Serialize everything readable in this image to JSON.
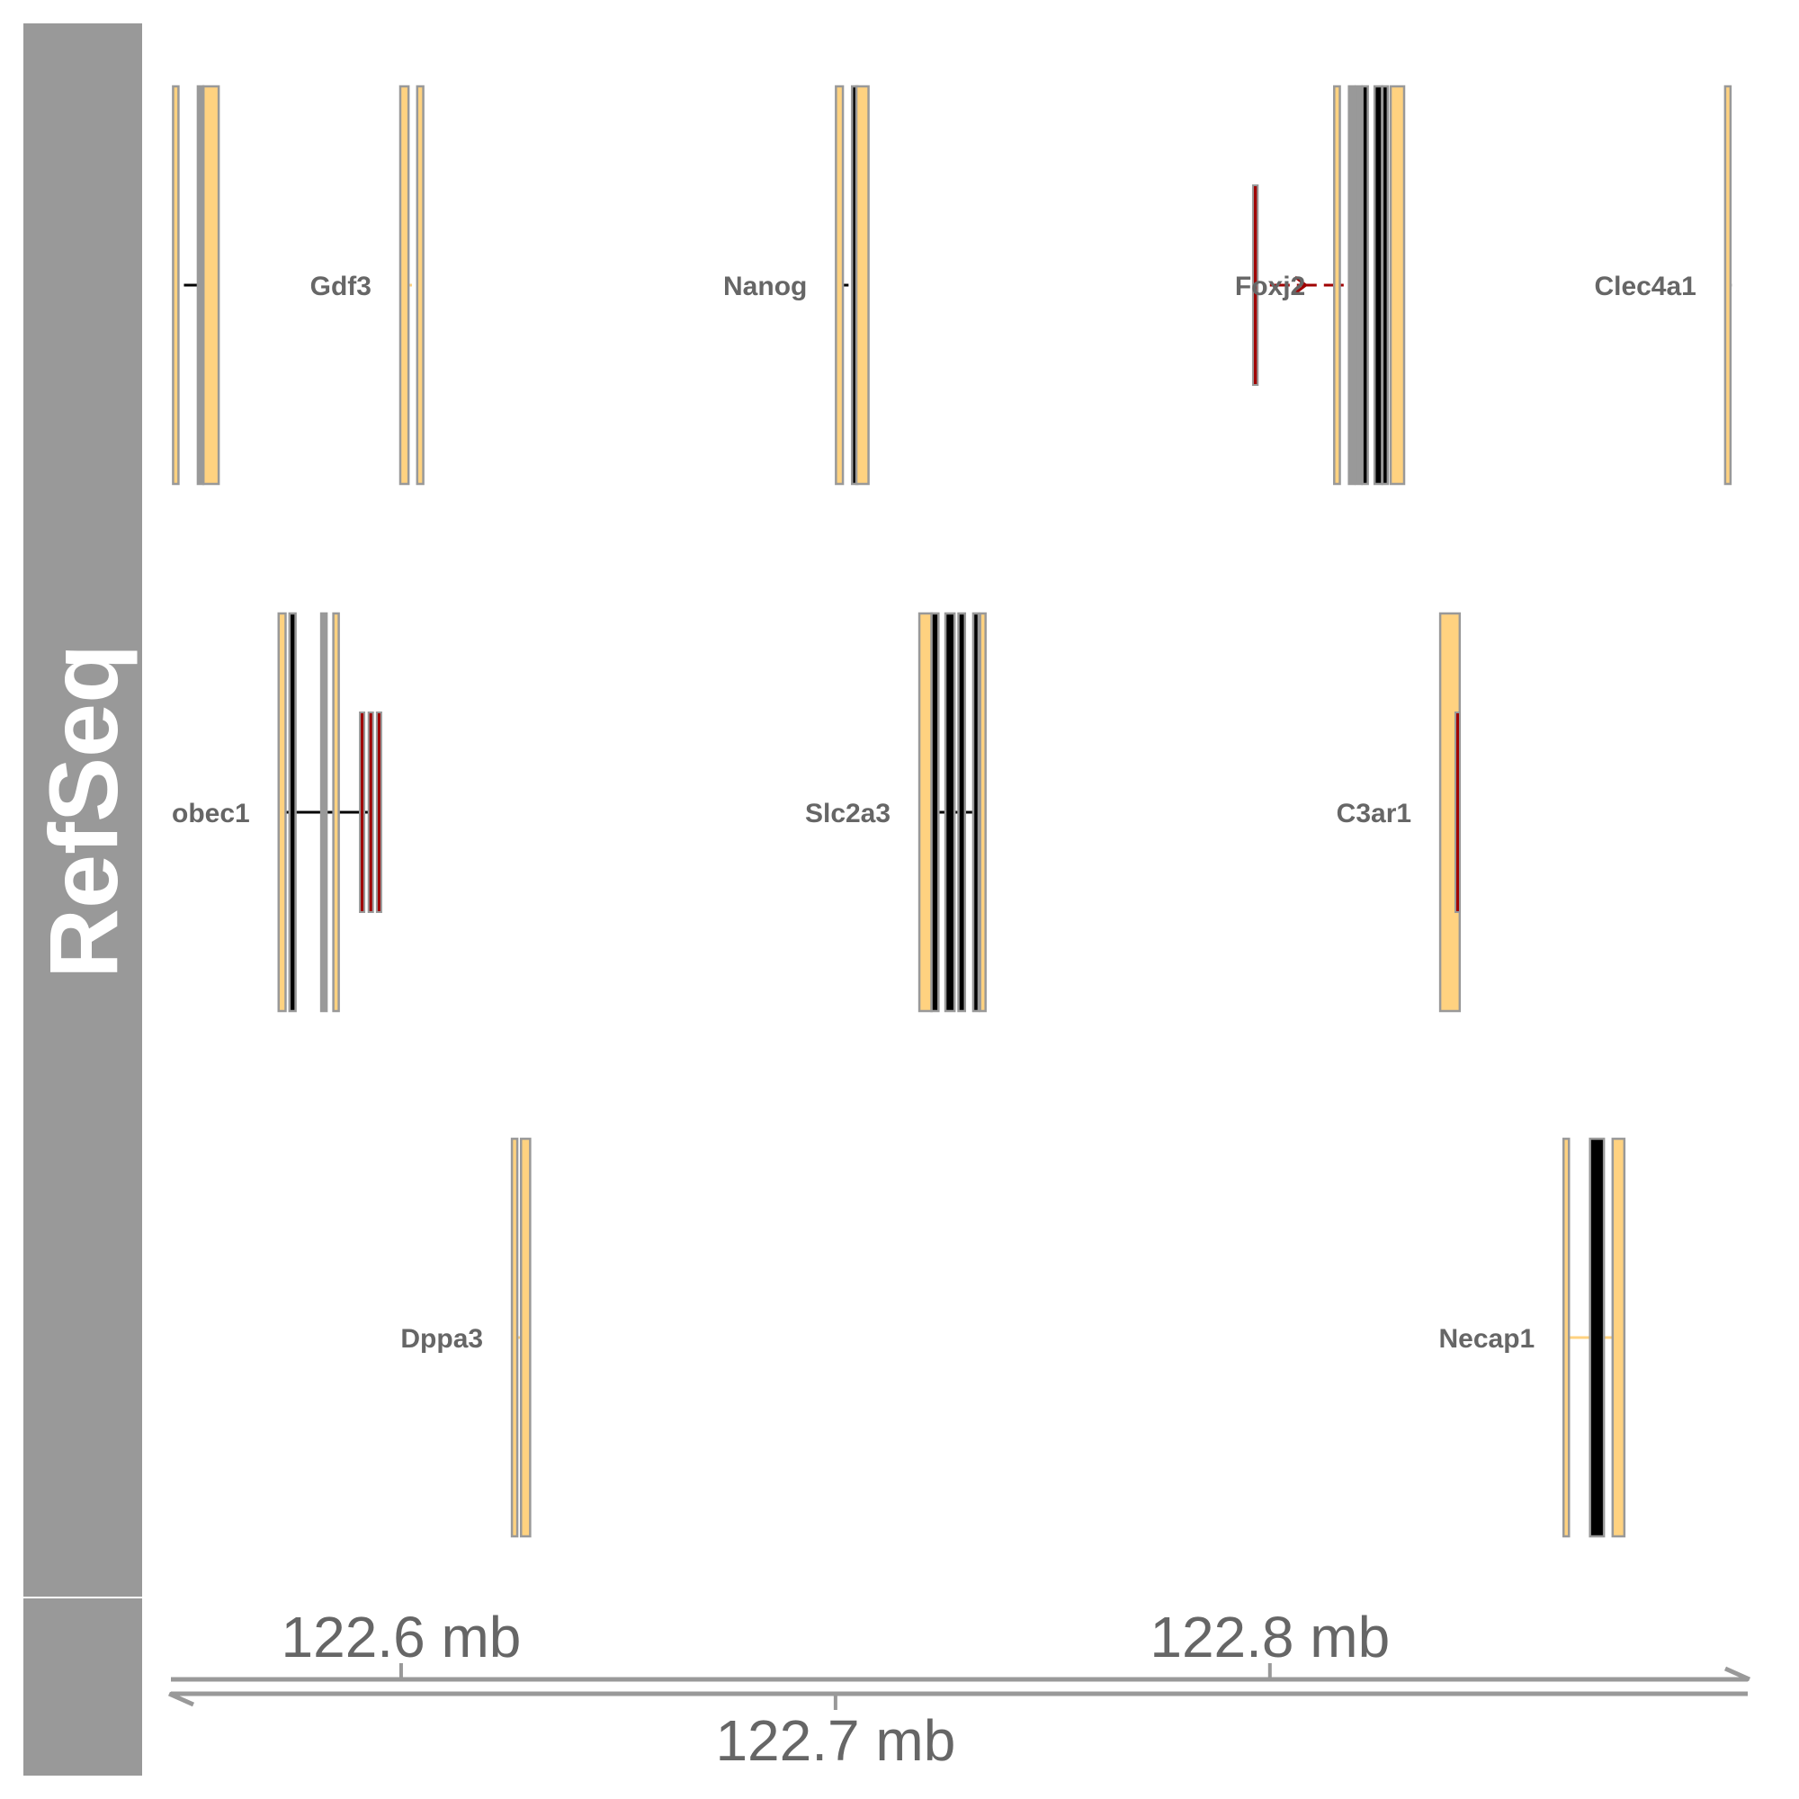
{
  "panel_title": "RefSeq",
  "colors": {
    "panel_bg": "#999999",
    "panel_text": "#ffffff",
    "exon_fill_utr": "#ffd280",
    "exon_fill_cds_dark": "#000000",
    "exon_fill_cds_mid": "#999999",
    "exon_border": "#999999",
    "intron_black": "#000000",
    "intron_red": "#a00000",
    "gene_label": "#666666",
    "axis": "#999999",
    "axis_label": "#666666"
  },
  "chart_data": {
    "type": "gene_track",
    "axis": {
      "unit": "mb",
      "range": [
        122.547,
        122.91
      ],
      "ticks_above": [
        {
          "value": 122.6,
          "label": "122.6 mb"
        },
        {
          "value": 122.8,
          "label": "122.8 mb"
        }
      ],
      "ticks_below": [
        {
          "value": 122.7,
          "label": "122.7 mb"
        }
      ]
    },
    "rows": [
      {
        "genes": [
          {
            "name": "",
            "show_label": false,
            "intron_color": "black",
            "intron_range": [
              122.55,
              122.555
            ],
            "exons": [
              {
                "start": 122.5475,
                "end": 122.5485,
                "fill": "utr"
              },
              {
                "start": 122.5532,
                "end": 122.554,
                "fill": "mid"
              },
              {
                "start": 122.5545,
                "end": 122.558,
                "fill": "utr"
              }
            ]
          },
          {
            "name": "Gdf3",
            "show_label": true,
            "intron_color": "utr",
            "intron_range": [
              122.6005,
              122.6025
            ],
            "exons": [
              {
                "start": 122.5998,
                "end": 122.6017,
                "fill": "utr"
              },
              {
                "start": 122.6037,
                "end": 122.6051,
                "fill": "utr"
              }
            ]
          },
          {
            "name": "Nanog",
            "show_label": true,
            "intron_color": "black",
            "intron_range": [
              122.701,
              122.703
            ],
            "exons": [
              {
                "start": 122.7001,
                "end": 122.7017,
                "fill": "utr"
              },
              {
                "start": 122.7038,
                "end": 122.7045,
                "fill": "dark"
              },
              {
                "start": 122.7048,
                "end": 122.7076,
                "fill": "utr"
              }
            ]
          },
          {
            "name": "Foxj2",
            "show_label": true,
            "intron_color": "red",
            "intron_range": [
              122.8,
              122.8195
            ],
            "has_arrow": true,
            "exons": [
              {
                "start": 122.8148,
                "end": 122.8161,
                "fill": "utr"
              },
              {
                "start": 122.8182,
                "end": 122.8193,
                "fill": "mid"
              },
              {
                "start": 122.8198,
                "end": 122.8211,
                "fill": "mid"
              },
              {
                "start": 122.8213,
                "end": 122.8225,
                "fill": "dark"
              },
              {
                "start": 122.8241,
                "end": 122.8258,
                "fill": "dark"
              },
              {
                "start": 122.8259,
                "end": 122.8271,
                "fill": "dark"
              },
              {
                "start": 122.8278,
                "end": 122.8309,
                "fill": "utr"
              }
            ],
            "isoform": {
              "start": 122.7961,
              "end": 122.7972
            }
          },
          {
            "name": "Clec4a1",
            "show_label": true,
            "intron_color": "black",
            "intron_range": [
              122.9056,
              122.9063
            ],
            "exons": [
              {
                "start": 122.9048,
                "end": 122.9056,
                "fill": "utr"
              }
            ]
          }
        ]
      },
      {
        "genes": [
          {
            "name": "obec1",
            "show_label": true,
            "intron_color": "black",
            "intron_range": [
              122.5734,
              122.593
            ],
            "exons": [
              {
                "start": 122.5718,
                "end": 122.5734,
                "fill": "utr"
              },
              {
                "start": 122.5743,
                "end": 122.5757,
                "fill": "dark"
              },
              {
                "start": 122.5816,
                "end": 122.5827,
                "fill": "mid"
              },
              {
                "start": 122.5844,
                "end": 122.5855,
                "fill": "utr"
              }
            ],
            "isoform_exons": [
              {
                "start": 122.5905,
                "end": 122.5911
              },
              {
                "start": 122.5925,
                "end": 122.5932
              },
              {
                "start": 122.5944,
                "end": 122.5951
              }
            ]
          },
          {
            "name": "Slc2a3",
            "show_label": true,
            "intron_color": "black",
            "intron_range": [
              122.7215,
              122.7333
            ],
            "exons": [
              {
                "start": 122.7193,
                "end": 122.7221,
                "fill": "utr"
              },
              {
                "start": 122.7221,
                "end": 122.7237,
                "fill": "dark"
              },
              {
                "start": 122.7253,
                "end": 122.7274,
                "fill": "dark"
              },
              {
                "start": 122.7283,
                "end": 122.7298,
                "fill": "dark"
              },
              {
                "start": 122.7317,
                "end": 122.7329,
                "fill": "dark"
              },
              {
                "start": 122.7333,
                "end": 122.7345,
                "fill": "utr"
              }
            ]
          },
          {
            "name": "C3ar1",
            "show_label": true,
            "intron_color": "red",
            "intron_range": [
              122.8392,
              122.8427
            ],
            "exons": [
              {
                "start": 122.8392,
                "end": 122.8437,
                "fill": "utr"
              }
            ],
            "isoform": {
              "start": 122.8427,
              "end": 122.8434
            }
          }
        ]
      },
      {
        "genes": [
          {
            "name": "Dppa3",
            "show_label": true,
            "intron_color": "utr",
            "intron_range": [
              122.6263,
              122.6276
            ],
            "exons": [
              {
                "start": 122.6255,
                "end": 122.6266,
                "fill": "utr"
              },
              {
                "start": 122.6276,
                "end": 122.6297,
                "fill": "utr"
              }
            ]
          },
          {
            "name": "Necap1",
            "show_label": true,
            "intron_color": "utr",
            "intron_range": [
              122.8684,
              122.8789
            ],
            "exons": [
              {
                "start": 122.8676,
                "end": 122.8687,
                "fill": "utr"
              },
              {
                "start": 122.8737,
                "end": 122.8769,
                "fill": "dark"
              },
              {
                "start": 122.8789,
                "end": 122.8816,
                "fill": "utr"
              }
            ]
          }
        ]
      }
    ]
  }
}
